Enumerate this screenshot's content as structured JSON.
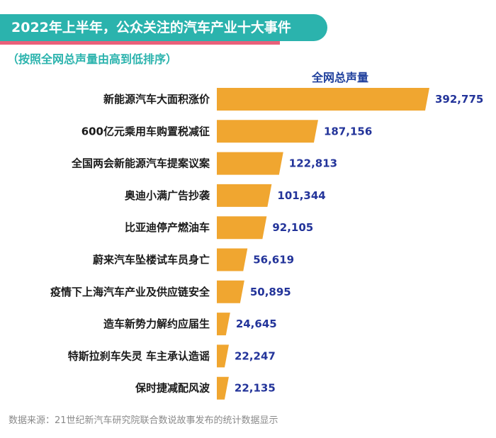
{
  "header": {
    "title": "2022年上半年，公众关注的汽车产业十大事件",
    "subtitle": "（按照全网总声量由高到低排序）"
  },
  "footer": {
    "source": "数据来源：21世纪新汽车研究院联合数说故事发布的统计数据显示"
  },
  "colors": {
    "banner": "#2bb3ad",
    "underline": "#e9607a",
    "bar": "#f0a630",
    "value_text": "#23349a"
  },
  "chart_data": {
    "type": "bar",
    "orientation": "horizontal",
    "series": [
      {
        "name": "全网总声量",
        "values": [
          392775,
          187156,
          122813,
          101344,
          92105,
          56619,
          50895,
          24645,
          22247,
          22135
        ]
      }
    ],
    "categories": [
      "新能源汽车大面积涨价",
      "600亿元乘用车购置税减征",
      "全国两会新能源汽车提案议案",
      "奥迪小满广告抄袭",
      "比亚迪停产燃油车",
      "蔚来汽车坠楼试车员身亡",
      "疫情下上海汽车产业及供应链安全",
      "造车新势力解约应届生",
      "特斯拉刹车失灵 车主承认造谣",
      "保时捷减配风波"
    ],
    "value_labels": [
      "392,775",
      "187,156",
      "122,813",
      "101,344",
      "92,105",
      "56,619",
      "50,895",
      "24,645",
      "22,247",
      "22,135"
    ],
    "title": "",
    "xlabel": "",
    "ylabel": "",
    "grid": false,
    "legend": "none"
  }
}
